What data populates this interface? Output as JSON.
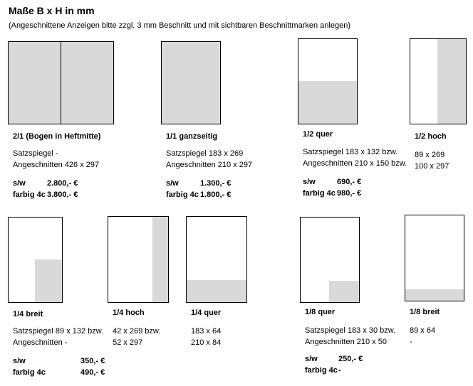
{
  "header": {
    "title": "Maße B x H in mm",
    "subtitle": "(Angeschnittene Anzeigen bitte zzgl. 3 mm Beschnitt und mit sichtbaren Beschnittmarken anlegen)"
  },
  "ads": {
    "a2_1": {
      "label": "2/1 (Bogen in Heftmitte)",
      "line1": "Satzspiegel -",
      "line2": "Angeschnitten 426 x 297",
      "sw_label": "s/w",
      "sw_price": "2.800,- €",
      "color_label": "farbig 4c",
      "color_price": "3.800,- €"
    },
    "a1_1": {
      "label": "1/1 ganzseitig",
      "line1": "Satzspiegel 183 x 269",
      "line2": "Angeschnitten 210 x 297",
      "sw_label": "s/w",
      "sw_price": "1.300,- €",
      "color_label": "farbig 4c",
      "color_price": "1.800,- €"
    },
    "a1_2q": {
      "label": "1/2 quer",
      "line1": "Satzspiegel 183 x 132  bzw.",
      "line2": "Angeschnitten 210 x 150 bzw.",
      "sw_label": "s/w",
      "sw_price": "690,- €",
      "color_label": "farbig 4c",
      "color_price": "980,- €"
    },
    "a1_2h": {
      "label": "1/2 hoch",
      "line1": "89 x 269",
      "line2": "100 x 297"
    },
    "a1_4b": {
      "label": "1/4 breit",
      "line1": "Satzspiegel 89 x 132 bzw.",
      "line2": "Angeschnitten -",
      "sw_label": "s/w",
      "sw_price": "350,- €",
      "color_label": "farbig 4c",
      "color_price": "490,- €"
    },
    "a1_4h": {
      "label": "1/4 hoch",
      "line1": "42 x 269   bzw.",
      "line2": "52 x 297"
    },
    "a1_4q": {
      "label": "1/4 quer",
      "line1": "183 x 64",
      "line2": "210 x 84"
    },
    "a1_8q": {
      "label": "1/8 quer",
      "line1": "Satzspiegel 183 x 30   bzw.",
      "line2": "Angeschnitten 210 x 50",
      "sw_label": "s/w",
      "sw_price": "250,- €",
      "color_label": "farbig 4c",
      "color_price": "-"
    },
    "a1_8b": {
      "label": "1/8 breit",
      "line1": "89 x 64",
      "line2": "-"
    }
  },
  "colors": {
    "fill": "#d9d9d9",
    "border": "#000000"
  }
}
